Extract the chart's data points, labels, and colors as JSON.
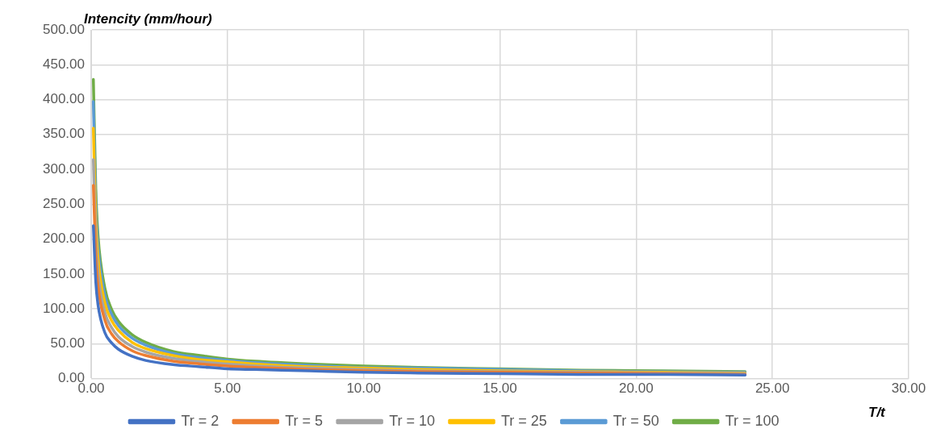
{
  "chart_data": {
    "type": "line",
    "ylabel": "Intencity (mm/hour)",
    "xlabel": "T/t",
    "x": [
      0.08,
      0.17,
      0.25,
      0.5,
      0.75,
      1,
      1.5,
      2,
      3,
      4,
      5,
      6,
      8,
      10,
      12,
      15,
      18,
      21,
      24
    ],
    "series": [
      {
        "name": "Tr = 2",
        "color": "#4472c4",
        "values": [
          219,
          138,
          106,
          66,
          51,
          42,
          32,
          26,
          20,
          17,
          14,
          13,
          11,
          9,
          8,
          7,
          6,
          6,
          5
        ]
      },
      {
        "name": "Tr = 5",
        "color": "#ed7d31",
        "values": [
          277,
          175,
          133,
          84,
          64,
          53,
          40,
          33,
          25,
          21,
          18,
          16,
          13,
          11,
          10,
          9,
          8,
          7,
          6
        ]
      },
      {
        "name": "Tr = 10",
        "color": "#a5a5a5",
        "values": [
          314,
          198,
          151,
          95,
          73,
          60,
          46,
          38,
          29,
          24,
          21,
          18,
          15,
          13,
          11,
          10,
          9,
          8,
          7
        ]
      },
      {
        "name": "Tr = 25",
        "color": "#ffc000",
        "values": [
          359,
          227,
          173,
          109,
          83,
          69,
          52,
          43,
          33,
          27,
          24,
          21,
          17,
          15,
          13,
          11,
          10,
          9,
          8
        ]
      },
      {
        "name": "Tr = 50",
        "color": "#5b9bd5",
        "values": [
          397,
          251,
          191,
          120,
          92,
          76,
          58,
          48,
          36,
          30,
          26,
          23,
          19,
          16,
          15,
          13,
          11,
          10,
          9
        ]
      },
      {
        "name": "Tr = 100",
        "color": "#70ad47",
        "values": [
          429,
          271,
          206,
          130,
          99,
          82,
          63,
          52,
          39,
          33,
          28,
          25,
          21,
          18,
          16,
          14,
          12,
          11,
          10
        ]
      }
    ],
    "xlim": [
      0,
      30
    ],
    "xticks": [
      {
        "value": 0,
        "label": "0.00"
      },
      {
        "value": 5,
        "label": "5.00"
      },
      {
        "value": 10,
        "label": "10.00"
      },
      {
        "value": 15,
        "label": "15.00"
      },
      {
        "value": 20,
        "label": "20.00"
      },
      {
        "value": 25,
        "label": "25.00"
      },
      {
        "value": 30,
        "label": "30.00"
      }
    ],
    "ylim": [
      0,
      500
    ],
    "yticks": [
      {
        "value": 0,
        "label": "0.00"
      },
      {
        "value": 50,
        "label": "50.00"
      },
      {
        "value": 100,
        "label": "100.00"
      },
      {
        "value": 150,
        "label": "150.00"
      },
      {
        "value": 200,
        "label": "200.00"
      },
      {
        "value": 250,
        "label": "250.00"
      },
      {
        "value": 300,
        "label": "300.00"
      },
      {
        "value": 350,
        "label": "350.00"
      },
      {
        "value": 400,
        "label": "400.00"
      },
      {
        "value": 450,
        "label": "450.00"
      },
      {
        "value": 500,
        "label": "500.00"
      }
    ],
    "grid": true,
    "legend": "bottom",
    "marker": "none",
    "line_style": "solid"
  }
}
